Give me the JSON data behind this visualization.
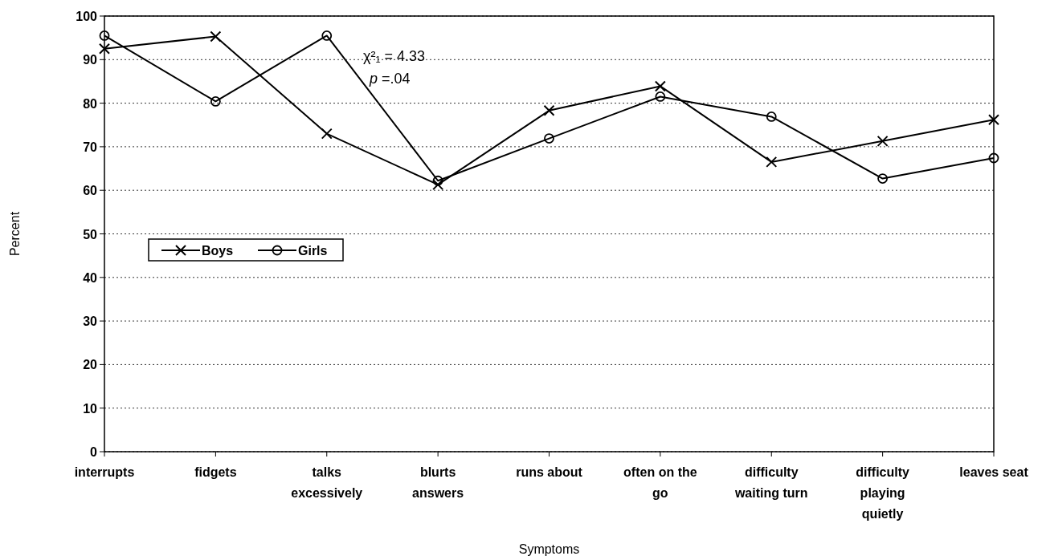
{
  "chart_data": {
    "type": "line",
    "xlabel": "Symptoms",
    "ylabel": "Percent",
    "categories": [
      "interrupts",
      "fidgets",
      "talks excessively",
      "blurts answers",
      "runs about",
      "often on the go",
      "difficulty waiting turn",
      "difficulty playing quietly",
      "leaves seat"
    ],
    "series": [
      {
        "name": "Boys",
        "color": "#000000",
        "marker": "cross",
        "values": [
          92.5,
          95.3,
          73,
          61.3,
          78.3,
          83.9,
          66.5,
          71.3,
          76.2
        ]
      },
      {
        "name": "Girls",
        "color": "#000000",
        "marker": "circle",
        "values": [
          95.5,
          80.4,
          95.5,
          62.2,
          71.9,
          81.5,
          76.9,
          62.7,
          67.4
        ]
      }
    ],
    "annotations": [
      "χ²₁ = 4.33",
      "p =.04"
    ],
    "ylim": [
      0,
      100
    ],
    "yticks": [
      0,
      10,
      20,
      30,
      40,
      50,
      60,
      70,
      80,
      90,
      100
    ],
    "grid": "y",
    "legend": "left",
    "line_style": "solid"
  }
}
